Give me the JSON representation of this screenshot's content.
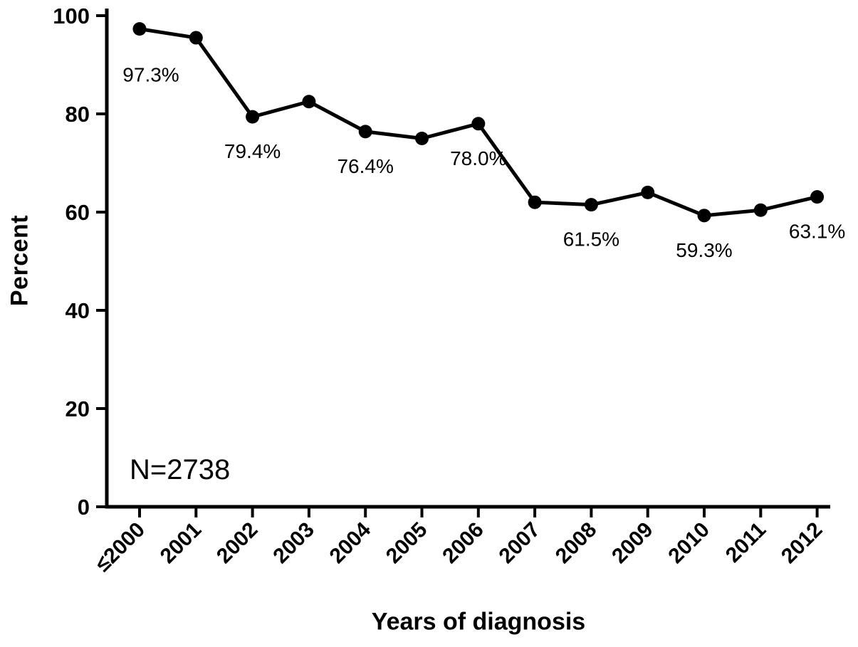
{
  "chart_data": {
    "type": "line",
    "title": "",
    "xlabel": "Years of diagnosis",
    "ylabel": "Percent",
    "annotation": "N=2738",
    "categories": [
      "≤2000",
      "2001",
      "2002",
      "2003",
      "2004",
      "2005",
      "2006",
      "2007",
      "2008",
      "2009",
      "2010",
      "2011",
      "2012"
    ],
    "values": [
      97.3,
      95.5,
      79.4,
      82.5,
      76.4,
      75.0,
      78.0,
      62.0,
      61.5,
      64.0,
      59.3,
      60.4,
      63.1
    ],
    "point_labels": [
      "97.3%",
      "",
      "79.4%",
      "",
      "76.4%",
      "",
      "78.0%",
      "",
      "61.5%",
      "",
      "59.3%",
      "",
      "63.1%"
    ],
    "ylim": [
      0,
      100
    ],
    "yticks": [
      0,
      20,
      40,
      60,
      80,
      100
    ],
    "grid": false,
    "legend": "none",
    "colors": {
      "line": "#000000",
      "marker": "#000000",
      "text": "#000000"
    }
  }
}
